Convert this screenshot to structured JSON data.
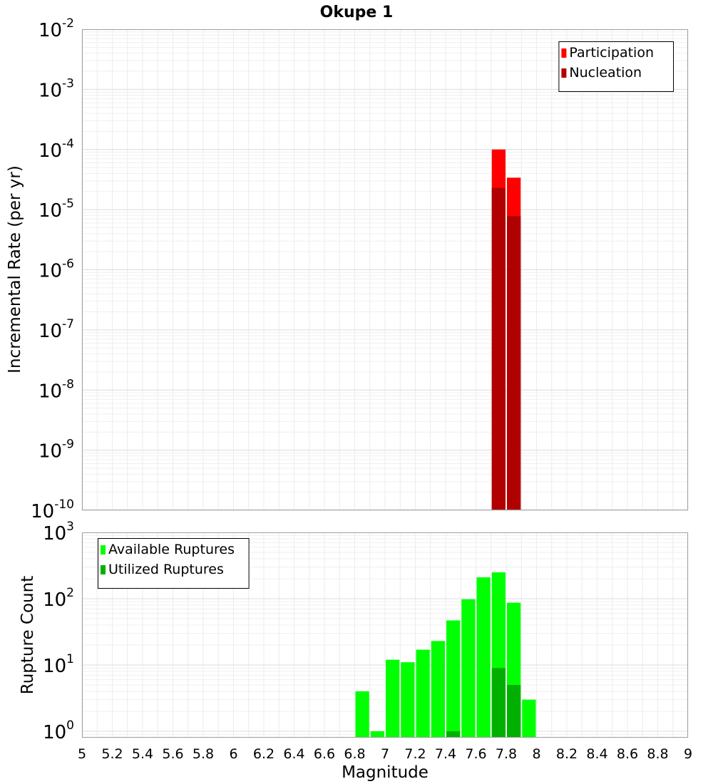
{
  "chart_data": {
    "title": "Okupe 1",
    "xlabel": "Magnitude",
    "x_ticks": [
      "5",
      "5.2",
      "5.4",
      "5.6",
      "5.8",
      "6",
      "6.2",
      "6.4",
      "6.6",
      "6.8",
      "7",
      "7.2",
      "7.4",
      "7.6",
      "7.8",
      "8",
      "8.2",
      "8.4",
      "8.6",
      "8.8",
      "9"
    ],
    "xlim": [
      5,
      9
    ],
    "bin_width": 0.1,
    "grid": true,
    "panels": [
      {
        "type": "bar",
        "ylabel": "Incremental Rate (per yr)",
        "yscale": "log",
        "ylim": [
          1e-10,
          0.01
        ],
        "y_tick_labels": [
          {
            "exp": "-2",
            "value": 0.01
          },
          {
            "exp": "-3",
            "value": 0.001
          },
          {
            "exp": "-4",
            "value": 0.0001
          },
          {
            "exp": "-5",
            "value": 1e-05
          },
          {
            "exp": "-6",
            "value": 1e-06
          },
          {
            "exp": "-7",
            "value": 1e-07
          },
          {
            "exp": "-8",
            "value": 1e-08
          },
          {
            "exp": "-9",
            "value": 1e-09
          },
          {
            "exp": "-10",
            "value": 1e-10
          }
        ],
        "legend_position": "top-right",
        "series": [
          {
            "name": "Participation",
            "color": "#ff0000",
            "x": [
              7.75,
              7.85
            ],
            "values": [
              0.0001,
              3.4e-05
            ]
          },
          {
            "name": "Nucleation",
            "color": "#b00000",
            "x": [
              7.75,
              7.85
            ],
            "values": [
              2.3e-05,
              7.8e-06
            ]
          }
        ]
      },
      {
        "type": "bar",
        "ylabel": "Rupture Count",
        "yscale": "log",
        "ylim": [
          0.8,
          1000
        ],
        "y_tick_labels": [
          {
            "exp": "3",
            "value": 1000
          },
          {
            "exp": "2",
            "value": 100
          },
          {
            "exp": "1",
            "value": 10
          },
          {
            "exp": "0",
            "value": 1
          }
        ],
        "legend_position": "top-left",
        "series": [
          {
            "name": "Available Ruptures",
            "color": "#00ff00",
            "x": [
              6.85,
              6.95,
              7.05,
              7.15,
              7.25,
              7.35,
              7.45,
              7.55,
              7.65,
              7.75,
              7.85,
              7.95
            ],
            "values": [
              4,
              1,
              12,
              11,
              17,
              23,
              47,
              98,
              210,
              250,
              87,
              3
            ]
          },
          {
            "name": "Utilized Ruptures",
            "color": "#00b000",
            "x": [
              7.45,
              7.75,
              7.85
            ],
            "values": [
              1,
              9,
              5
            ]
          }
        ]
      }
    ]
  }
}
